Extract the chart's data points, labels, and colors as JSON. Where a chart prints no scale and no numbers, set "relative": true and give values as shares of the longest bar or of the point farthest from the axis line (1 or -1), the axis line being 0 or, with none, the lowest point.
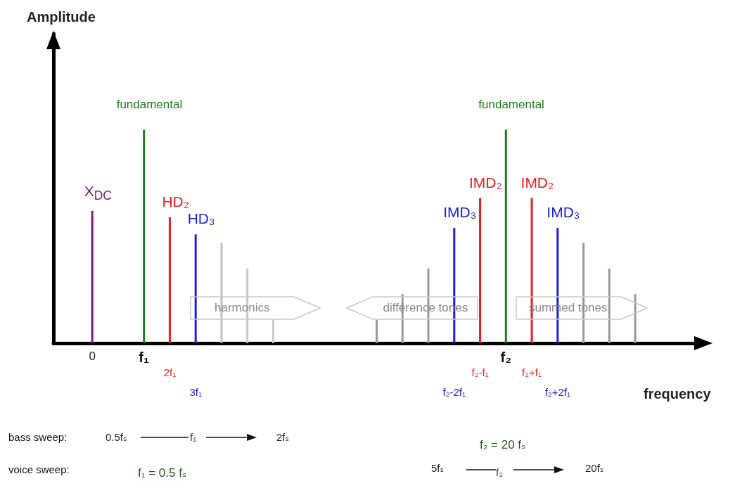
{
  "chart_data": {
    "type": "bar",
    "relative": true,
    "xlabel": "frequency",
    "categories": [
      null,
      "0",
      null,
      "f₁",
      "2f₁",
      "3f₁",
      null,
      null,
      null,
      null,
      null,
      null,
      null,
      null,
      null,
      "f₂-2f₁",
      "f₂-f₁",
      "f₂",
      "f₂+f₁",
      "f₂+2f₁",
      null,
      null,
      null,
      null,
      null
    ],
    "values": [
      null,
      0.62,
      null,
      1,
      0.59,
      0.51,
      0.47,
      0.35,
      0.11,
      null,
      null,
      null,
      0.11,
      0.23,
      0.35,
      0.54,
      0.68,
      1,
      0.68,
      0.54,
      0.47,
      0.35,
      0.23,
      null,
      null
    ],
    "colors": [
      "#999999",
      "#7b1a7b",
      "#999999",
      "#1e7b1e",
      "#ee1c1c",
      "#1c1ce0",
      "#c0c0c0",
      "#c8c8c8",
      "#c8c8c8",
      "#999999",
      "#999999",
      "#999999",
      "#999999",
      "#999999",
      "#999999",
      "#1c1ce0",
      "#ee1c1c",
      "#1e7b1e",
      "#ee1c1c",
      "#1c1ce0",
      "#999999",
      "#999999",
      "#999999",
      "#999999",
      "#999999"
    ],
    "annotations": [
      {
        "text": "fundamental",
        "x": "f₁",
        "y": 1
      },
      {
        "text": "X$_{DC}$",
        "x": "0",
        "y": 0.62
      },
      {
        "text": "HD₂",
        "x": "2f₁",
        "y": 0.59
      },
      {
        "text": "HD₃",
        "x": "3f₁",
        "y": 0.51
      },
      {
        "text": "fundamental",
        "x": "f₂",
        "y": 1
      },
      {
        "text": "IMD₃",
        "x": "f₂-2f₁",
        "y": 0.54
      },
      {
        "text": "IMD₂",
        "x": "f₂-f₁",
        "y": 0.68
      },
      {
        "text": "IMD₂",
        "x": "f₂+f₁",
        "y": 0.68
      },
      {
        "text": "IMD₃",
        "x": "f₂+2f₁",
        "y": 0.54
      },
      "harmonics",
      "difference tones",
      "summed tones",
      "bass sweep:",
      "0.5fₛ",
      "f₁",
      "2fₛ",
      "f₂ = 20 fₛ",
      "voice sweep:",
      "f₁ = 0.5 fₛ",
      "5fₛ",
      "f₂",
      "20fₛ",
      "Amplitude"
    ]
  }
}
